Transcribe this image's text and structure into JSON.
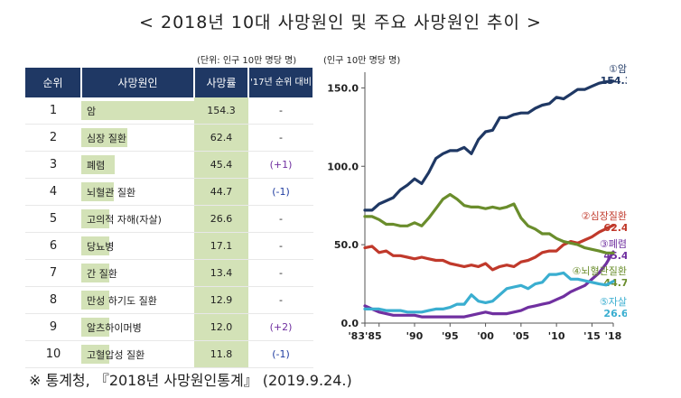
{
  "title": "< 2018년 10대 사망원인 및 주요 사망원인 추이 >",
  "table": {
    "unit": "(단위: 인구 10만 명당 명)",
    "headers": {
      "rank": "순위",
      "cause": "사망원인",
      "rate": "사망률",
      "change": "'17년 순위 대비"
    },
    "rows": [
      {
        "rank": "1",
        "cause": "암",
        "rate": "154.3",
        "change": "-"
      },
      {
        "rank": "2",
        "cause": "심장 질환",
        "rate": "62.4",
        "change": "-"
      },
      {
        "rank": "3",
        "cause": "폐렴",
        "rate": "45.4",
        "change": "(+1)"
      },
      {
        "rank": "4",
        "cause": "뇌혈관 질환",
        "rate": "44.7",
        "change": "(-1)"
      },
      {
        "rank": "5",
        "cause": "고의적 자해(자살)",
        "rate": "26.6",
        "change": "-"
      },
      {
        "rank": "6",
        "cause": "당뇨병",
        "rate": "17.1",
        "change": "-"
      },
      {
        "rank": "7",
        "cause": "간 질환",
        "rate": "13.4",
        "change": "-"
      },
      {
        "rank": "8",
        "cause": "만성 하기도 질환",
        "rate": "12.9",
        "change": "-"
      },
      {
        "rank": "9",
        "cause": "알츠하이머병",
        "rate": "12.0",
        "change": "(+2)"
      },
      {
        "rank": "10",
        "cause": "고혈압성 질환",
        "rate": "11.8",
        "change": "(-1)"
      }
    ]
  },
  "footer": "※ 통계청, 『2018년 사망원인통계』 (2019.9.24.)",
  "chart_data": {
    "type": "line",
    "ylabel": "(인구 10만 명당 명)",
    "ylim": [
      0,
      160
    ],
    "yticks": [
      0,
      50,
      100,
      150
    ],
    "ytick_labels": [
      "0.0",
      "50.0",
      "100.0",
      "150.0"
    ],
    "xlim": [
      1983,
      2018
    ],
    "xticks": [
      1983,
      1985,
      1990,
      1995,
      2000,
      2005,
      2010,
      2015,
      2018
    ],
    "xtick_labels": [
      "'83'85",
      "",
      "'90",
      "'95",
      "'00",
      "'05",
      "'10",
      "'15",
      "'18"
    ],
    "x": [
      1983,
      1984,
      1985,
      1986,
      1987,
      1988,
      1989,
      1990,
      1991,
      1992,
      1993,
      1994,
      1995,
      1996,
      1997,
      1998,
      1999,
      2000,
      2001,
      2002,
      2003,
      2004,
      2005,
      2006,
      2007,
      2008,
      2009,
      2010,
      2011,
      2012,
      2013,
      2014,
      2015,
      2016,
      2017,
      2018
    ],
    "series": [
      {
        "name": "①암",
        "end_label": "154.3",
        "color": "#1f3864",
        "values": [
          72,
          72,
          76,
          78,
          80,
          85,
          88,
          92,
          89,
          96,
          105,
          108,
          110,
          110,
          112,
          108,
          117,
          122,
          123,
          131,
          131,
          133,
          134,
          134,
          137,
          139,
          140,
          144,
          143,
          146,
          149,
          149,
          151,
          153,
          153.9,
          154.3
        ]
      },
      {
        "name": "②심장질환",
        "end_label": "62.4",
        "color": "#c0392b",
        "values": [
          48,
          49,
          45,
          46,
          43,
          43,
          42,
          41,
          42,
          41,
          40,
          40,
          38,
          37,
          36,
          37,
          36,
          38,
          34,
          36,
          37,
          36,
          39,
          40,
          42,
          45,
          46,
          46,
          50,
          52,
          51,
          53,
          55,
          58,
          60.2,
          62.4
        ]
      },
      {
        "name": "③폐렴",
        "end_label": "45.4",
        "color": "#7030a0",
        "values": [
          11,
          9,
          7,
          6,
          5,
          5,
          5,
          5,
          4,
          4,
          4,
          4,
          4,
          4,
          4,
          5,
          6,
          7,
          6,
          6,
          6,
          7,
          8,
          10,
          11,
          12,
          13,
          15,
          17,
          20,
          22,
          24,
          28,
          32,
          37.8,
          45.4
        ]
      },
      {
        "name": "④뇌혈관질환",
        "end_label": "44.7",
        "color": "#6a8d2c",
        "values": [
          68,
          68,
          66,
          63,
          63,
          62,
          62,
          64,
          62,
          67,
          73,
          79,
          82,
          79,
          75,
          74,
          74,
          73,
          74,
          73,
          74,
          76,
          67,
          62,
          60,
          57,
          57,
          54,
          52,
          51,
          50,
          48,
          47,
          46,
          44.8,
          44.7
        ]
      },
      {
        "name": "⑤자살",
        "end_label": "26.6",
        "color": "#3aaed0",
        "values": [
          9,
          9,
          9,
          8,
          8,
          8,
          7,
          7,
          7,
          8,
          9,
          9,
          10,
          12,
          12,
          18,
          14,
          13,
          14,
          18,
          22,
          23,
          24,
          22,
          25,
          26,
          31,
          31,
          32,
          28,
          28,
          27,
          26,
          25,
          24.3,
          26.6
        ]
      }
    ]
  }
}
